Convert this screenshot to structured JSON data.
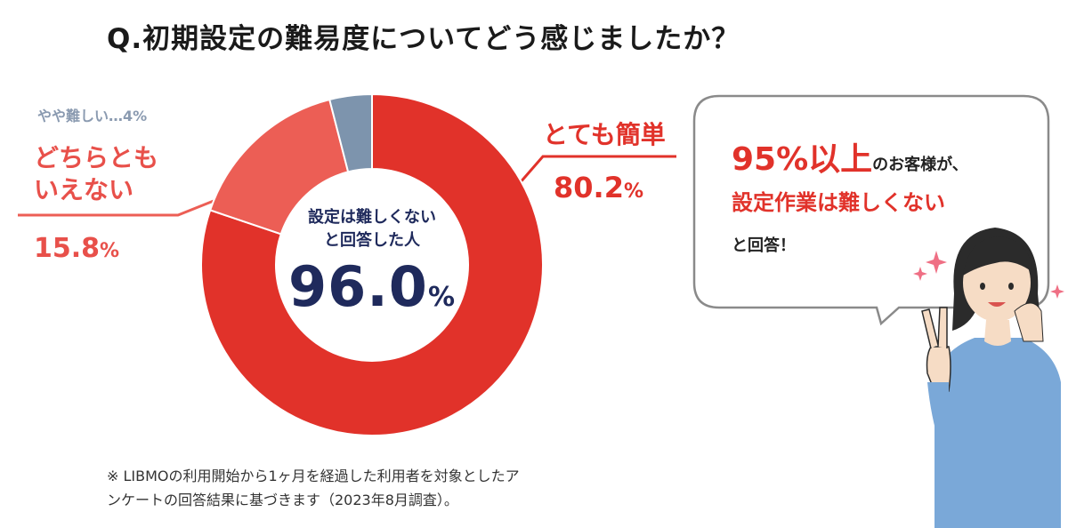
{
  "title": "Q.初期設定の難易度についてどう感じましたか？",
  "chart_data": {
    "type": "pie",
    "categories": [
      "とても簡単",
      "どちらともいえない",
      "やや難しい"
    ],
    "values": [
      80.2,
      15.8,
      4
    ],
    "colors": [
      "#e1322a",
      "#ec5e55",
      "#7d94ad"
    ],
    "center_label_line1": "設定は難しくない",
    "center_label_line2": "と回答した人",
    "center_value": "96.0",
    "center_unit": "%"
  },
  "labels": {
    "easy": "とても簡単",
    "easy_value": "80.2",
    "middle_line1": "どちらとも",
    "middle_line2": "いえない",
    "middle_value": "15.8",
    "hard": "やや難しい…4%",
    "unit": "%"
  },
  "bubble": {
    "highlight": "95%以上",
    "line1_rest": "のお客様が、",
    "line2": "設定作業は難しくない",
    "line3": "と回答！"
  },
  "footnote": {
    "line1": "※ LIBMOの利用開始から1ヶ月を経過した利用者を対象としたア",
    "line2": "ンケートの回答結果に基づきます（2023年8月調査）。"
  }
}
